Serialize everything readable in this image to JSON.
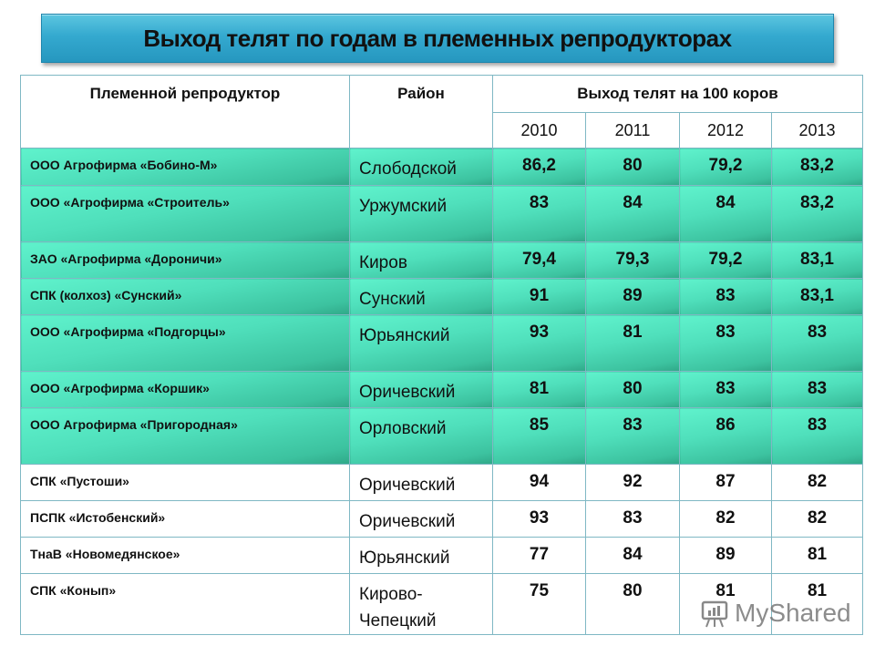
{
  "title": "Выход телят по годам в племенных репродукторах",
  "table": {
    "headers": {
      "farm": "Племенной репродуктор",
      "district": "Район",
      "group": "Выход телят на 100 коров",
      "years": [
        "2010",
        "2011",
        "2012",
        "2013"
      ]
    },
    "rows": [
      {
        "farm": "ООО Агрофирма «Бобино-М»",
        "district": "Слободской",
        "values": [
          "86,2",
          "80",
          "79,2",
          "83,2"
        ]
      },
      {
        "farm": "ООО «Агрофирма «Строитель»",
        "district": "Уржумский",
        "values": [
          "83",
          "84",
          "84",
          "83,2"
        ]
      },
      {
        "farm": "ЗАО «Агрофирма «Дороничи»",
        "district": "Киров",
        "values": [
          "79,4",
          "79,3",
          "79,2",
          "83,1"
        ]
      },
      {
        "farm": "СПК (колхоз) «Сунский»",
        "district": "Сунский",
        "values": [
          "91",
          "89",
          "83",
          "83,1"
        ]
      },
      {
        "farm": "ООО «Агрофирма «Подгорцы»",
        "district": "Юрьянский",
        "values": [
          "93",
          "81",
          "83",
          "83"
        ]
      },
      {
        "farm": "ООО «Агрофирма «Коршик»",
        "district": "Оричевский",
        "values": [
          "81",
          "80",
          "83",
          "83"
        ]
      },
      {
        "farm": "ООО Агрофирма «Пригородная»",
        "district": "Орловский",
        "values": [
          "85",
          "83",
          "86",
          "83"
        ]
      },
      {
        "farm": "СПК «Пустоши»",
        "district": "Оричевский",
        "values": [
          "94",
          "92",
          "87",
          "82"
        ]
      },
      {
        "farm": "ПСПК «Истобенский»",
        "district": "Оричевский",
        "values": [
          "93",
          "83",
          "82",
          "82"
        ]
      },
      {
        "farm": "ТнаВ «Новомедянское»",
        "district": "Юрьянский",
        "values": [
          "77",
          "84",
          "89",
          "81"
        ]
      },
      {
        "farm": "СПК «Конып»",
        "district": "Кирово-\nЧепецкий",
        "values": [
          "75",
          "80",
          "81",
          "81"
        ]
      }
    ]
  },
  "colors": {
    "title_bar": "#34a9cf",
    "highlight_rows": "#4fdfbb",
    "grid": "#7fb8c4"
  },
  "watermark": {
    "text": "MyShared",
    "icon": "presentation-board-icon"
  }
}
